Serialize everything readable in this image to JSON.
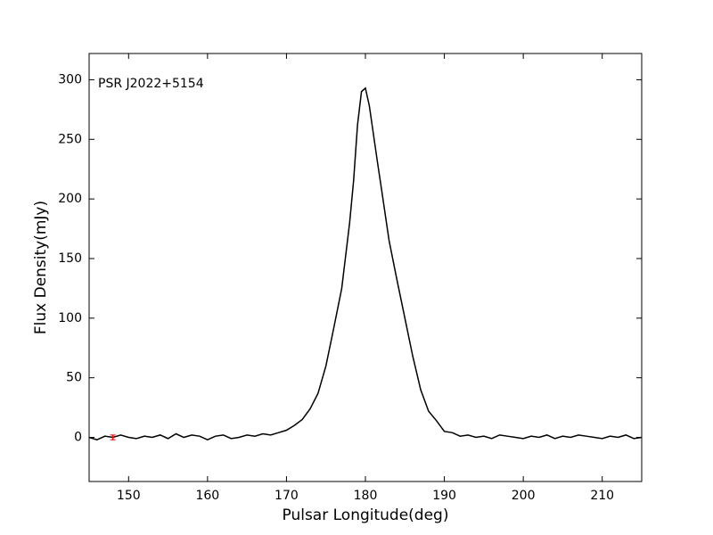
{
  "chart_data": {
    "type": "line",
    "annotation": "PSR J2022+5154",
    "xlabel": "Pulsar Longitude(deg)",
    "ylabel": "Flux Density(mJy)",
    "xlim": [
      145,
      215
    ],
    "xticks": [
      150,
      160,
      170,
      180,
      190,
      200,
      210
    ],
    "ylim": [
      -37,
      322
    ],
    "yticks": [
      0,
      50,
      100,
      150,
      200,
      250,
      300
    ],
    "series": [
      {
        "color": "#000000",
        "x": [
          145,
          146,
          147,
          148,
          149,
          150,
          151,
          152,
          153,
          154,
          155,
          156,
          157,
          158,
          159,
          160,
          161,
          162,
          163,
          164,
          165,
          166,
          167,
          168,
          169,
          170,
          171,
          172,
          173,
          174,
          175,
          176,
          177,
          178,
          178.5,
          179,
          179.5,
          180,
          180.5,
          181,
          181.5,
          182,
          183,
          184,
          185,
          186,
          187,
          188,
          189,
          190,
          191,
          192,
          193,
          194,
          195,
          196,
          197,
          198,
          199,
          200,
          201,
          202,
          203,
          204,
          205,
          206,
          207,
          208,
          209,
          210,
          211,
          212,
          213,
          214,
          215
        ],
        "values": [
          0,
          -2,
          1,
          0,
          2,
          0,
          -1,
          1,
          0,
          2,
          -1,
          3,
          0,
          2,
          1,
          -2,
          1,
          2,
          -1,
          0,
          2,
          1,
          3,
          2,
          4,
          6,
          10,
          15,
          24,
          37,
          60,
          92,
          125,
          180,
          215,
          262,
          290,
          293,
          278,
          255,
          232,
          210,
          165,
          132,
          100,
          68,
          40,
          22,
          14,
          5,
          4,
          1,
          2,
          0,
          1,
          -1,
          2,
          1,
          0,
          -1,
          1,
          0,
          2,
          -1,
          1,
          0,
          2,
          1,
          0,
          -1,
          1,
          0,
          2,
          -1,
          0
        ]
      }
    ],
    "error_bar": {
      "x": 148,
      "y": 0,
      "yerr": 2,
      "color": "#ff0000"
    }
  }
}
